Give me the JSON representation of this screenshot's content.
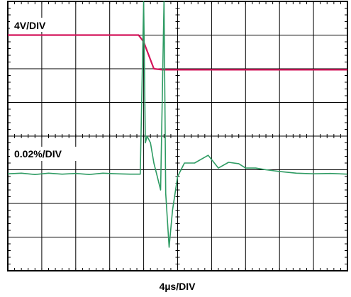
{
  "chart_data": {
    "type": "line",
    "title": "",
    "xlabel": "4µs/DIV",
    "grid": true,
    "grid_divisions": {
      "x": 10,
      "y": 8
    },
    "x_unit": "µs",
    "x_per_division": 4,
    "x_range_us": [
      0,
      40
    ],
    "traces": [
      {
        "label": "4V/DIV",
        "color": "#d4145a",
        "v_per_division": 4,
        "points_div": [
          [
            0,
            7.0
          ],
          [
            3.85,
            7.0
          ],
          [
            4.0,
            6.8
          ],
          [
            4.15,
            6.4
          ],
          [
            4.3,
            6.0
          ],
          [
            4.55,
            5.97
          ],
          [
            10,
            5.97
          ]
        ]
      },
      {
        "label": "0.02%/DIV",
        "color": "#2e9b63",
        "pct_per_division": 0.02,
        "points_div": [
          [
            0,
            2.88
          ],
          [
            0.4,
            2.9
          ],
          [
            0.8,
            2.86
          ],
          [
            1.2,
            2.9
          ],
          [
            1.6,
            2.87
          ],
          [
            2.0,
            2.89
          ],
          [
            2.4,
            2.86
          ],
          [
            2.8,
            2.9
          ],
          [
            3.2,
            2.88
          ],
          [
            3.6,
            2.87
          ],
          [
            3.9,
            2.87
          ],
          [
            4.0,
            8.0
          ],
          [
            4.05,
            3.8
          ],
          [
            4.1,
            4.0
          ],
          [
            4.2,
            3.8
          ],
          [
            4.3,
            3.2
          ],
          [
            4.4,
            2.8
          ],
          [
            4.5,
            2.4
          ],
          [
            4.6,
            8.0
          ],
          [
            4.65,
            2.3
          ],
          [
            4.75,
            0.7
          ],
          [
            4.85,
            1.8
          ],
          [
            5.0,
            2.8
          ],
          [
            5.2,
            3.2
          ],
          [
            5.5,
            3.2
          ],
          [
            5.9,
            3.43
          ],
          [
            6.2,
            3.05
          ],
          [
            6.5,
            3.22
          ],
          [
            6.8,
            3.18
          ],
          [
            7.0,
            3.05
          ],
          [
            7.3,
            3.05
          ],
          [
            7.6,
            3.0
          ],
          [
            8.0,
            2.95
          ],
          [
            8.5,
            2.9
          ],
          [
            9.0,
            2.88
          ],
          [
            9.5,
            2.89
          ],
          [
            10,
            2.87
          ]
        ]
      }
    ]
  }
}
